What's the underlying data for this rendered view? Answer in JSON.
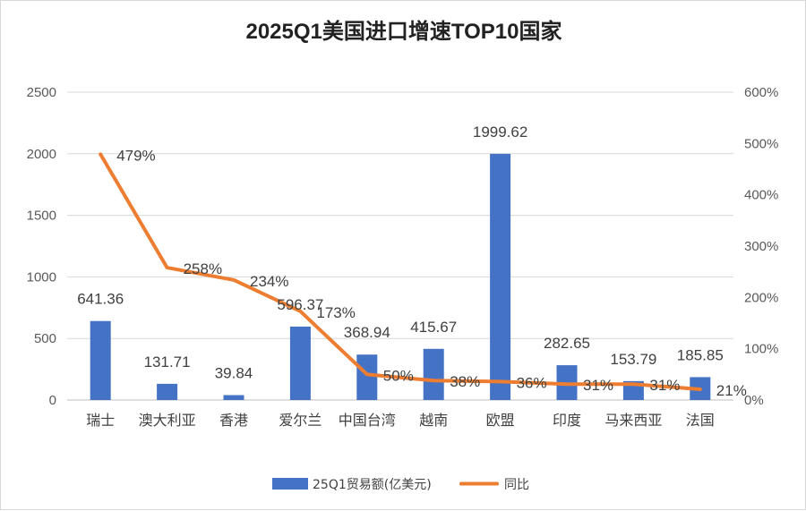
{
  "chart_data": {
    "type": "bar",
    "title": "2025Q1美国进口增速TOP10国家",
    "categories": [
      "瑞士",
      "澳大利亚",
      "香港",
      "爱尔兰",
      "中国台湾",
      "越南",
      "欧盟",
      "印度",
      "马来西亚",
      "法国"
    ],
    "series": [
      {
        "name": "25Q1贸易额(亿美元)",
        "type": "bar",
        "axis": "left",
        "color": "#4472C4",
        "values": [
          641.36,
          131.71,
          39.84,
          596.37,
          368.94,
          415.67,
          1999.62,
          282.65,
          153.79,
          185.85
        ],
        "labels": [
          "641.36",
          "131.71",
          "39.84",
          "596.37",
          "368.94",
          "415.67",
          "1999.62",
          "282.65",
          "153.79",
          "185.85"
        ]
      },
      {
        "name": "同比",
        "type": "line",
        "axis": "right",
        "color": "#ED7D31",
        "values": [
          479,
          258,
          234,
          173,
          50,
          38,
          36,
          31,
          31,
          21
        ],
        "labels": [
          "479%",
          "258%",
          "234%",
          "173%",
          "50%",
          "38%",
          "36%",
          "31%",
          "31%",
          "21%"
        ]
      }
    ],
    "y_left": {
      "min": 0,
      "max": 2500,
      "step": 500,
      "ticks": [
        "0",
        "500",
        "1000",
        "1500",
        "2000",
        "2500"
      ]
    },
    "y_right": {
      "min": 0,
      "max": 600,
      "step": 100,
      "ticks": [
        "0%",
        "100%",
        "200%",
        "300%",
        "400%",
        "500%",
        "600%"
      ]
    },
    "grid": true,
    "legend_position": "bottom"
  }
}
